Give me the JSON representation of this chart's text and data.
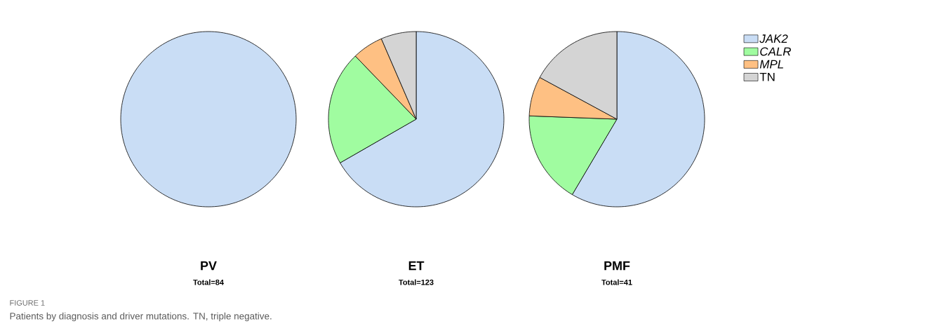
{
  "chart_data": [
    {
      "type": "pie",
      "title": "PV",
      "subtitle": "Total=84",
      "values": [
        100
      ],
      "colors": [
        "#c9ddf5"
      ],
      "annotations": [
        "FIGURE 1",
        "Patients by diagnosis and driver mutations. TN, triple negative."
      ]
    },
    {
      "type": "pie",
      "title": "ET",
      "subtitle": "Total=123",
      "values": [
        66.7,
        21.1,
        5.7,
        6.5
      ],
      "colors": [
        "#c9ddf5",
        "#a0fca0",
        "#fec083",
        "#d4d4d4"
      ]
    },
    {
      "type": "pie",
      "title": "PMF",
      "subtitle": "Total=41",
      "categories": [
        "*JAK2*",
        "*CALR*",
        "*MPL*",
        "TN"
      ],
      "values": [
        58.5,
        17.1,
        7.3,
        17.1
      ],
      "colors": [
        "#c9ddf5",
        "#a0fca0",
        "#fec083",
        "#d4d4d4"
      ],
      "legend": "top right"
    }
  ]
}
